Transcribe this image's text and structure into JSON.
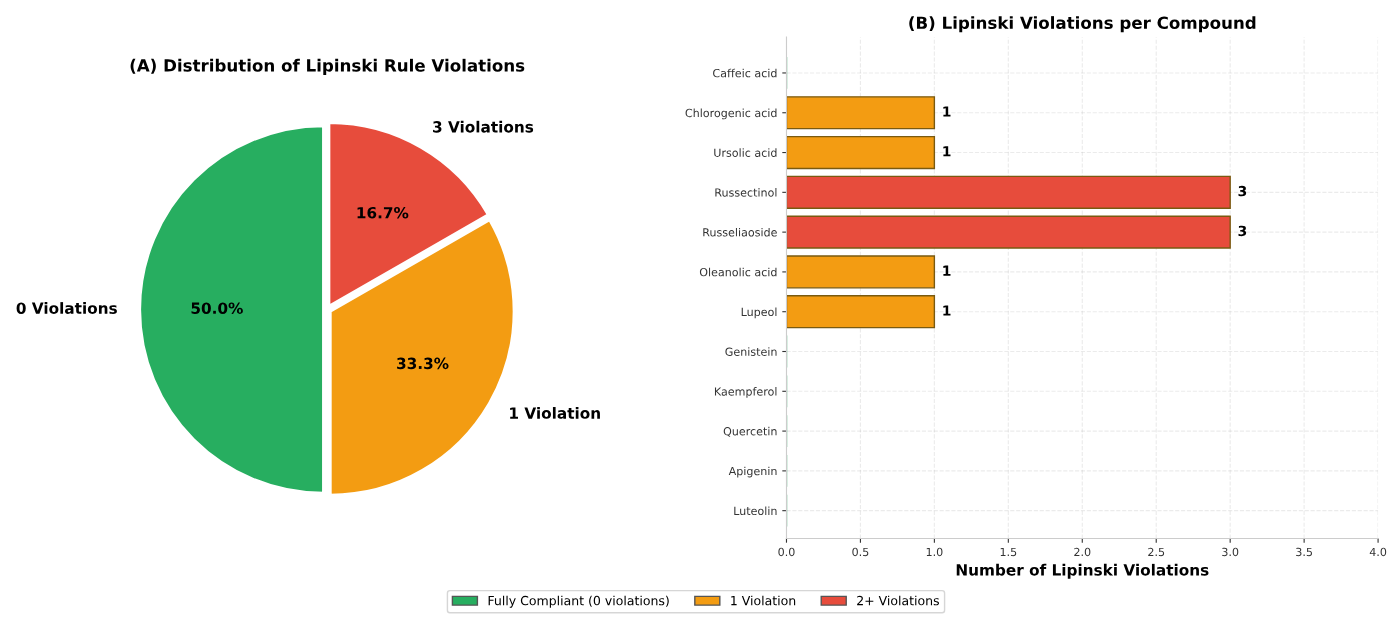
{
  "chart_data": [
    {
      "type": "pie",
      "title": "(A) Distribution of Lipinski Rule Violations",
      "categories": [
        "0 Violations",
        "1 Violation",
        "3 Violations"
      ],
      "values": [
        50.0,
        33.3,
        16.7
      ],
      "colors": [
        "#27ae60",
        "#f39c12",
        "#e74c3c"
      ],
      "value_labels": [
        "50.0%",
        "33.3%",
        "16.7%"
      ]
    },
    {
      "type": "bar",
      "orientation": "horizontal",
      "title": "(B) Lipinski Violations per Compound",
      "xlabel": "Number of Lipinski Violations",
      "categories": [
        "Caffeic acid",
        "Chlorogenic acid",
        "Ursolic acid",
        "Russectinol",
        "Russeliaoside",
        "Oleanolic acid",
        "Lupeol",
        "Genistein",
        "Kaempferol",
        "Quercetin",
        "Apigenin",
        "Luteolin"
      ],
      "series": [
        {
          "name": "Fully Compliant (0 violations)",
          "color": "#27ae60",
          "values": [
            0,
            null,
            null,
            null,
            null,
            null,
            null,
            0,
            0,
            0,
            0,
            0
          ],
          "value_labels": [
            null,
            null,
            null,
            null,
            null,
            null,
            null,
            null,
            null,
            null,
            null,
            null
          ]
        },
        {
          "name": "1 Violation",
          "color": "#f39c12",
          "values": [
            null,
            1,
            1,
            null,
            null,
            1,
            1,
            null,
            null,
            null,
            null,
            null
          ],
          "value_labels": [
            null,
            "1",
            "1",
            null,
            null,
            "1",
            "1",
            null,
            null,
            null,
            null,
            null
          ]
        },
        {
          "name": "2+ Violations",
          "color": "#e74c3c",
          "values": [
            null,
            null,
            null,
            3,
            3,
            null,
            null,
            null,
            null,
            null,
            null,
            null
          ],
          "value_labels": [
            null,
            null,
            null,
            "3",
            "3",
            null,
            null,
            null,
            null,
            null,
            null,
            null
          ]
        }
      ],
      "xlim": [
        0,
        4
      ],
      "xticks": [
        {
          "value": 0,
          "label": "0.0"
        },
        {
          "value": 0.5,
          "label": "0.5"
        },
        {
          "value": 1,
          "label": "1.0"
        },
        {
          "value": 1.5,
          "label": "1.5"
        },
        {
          "value": 2,
          "label": "2.0"
        },
        {
          "value": 2.5,
          "label": "2.5"
        },
        {
          "value": 3,
          "label": "3.0"
        },
        {
          "value": 3.5,
          "label": "3.5"
        },
        {
          "value": 4,
          "label": "4.0"
        }
      ],
      "grid": true,
      "legend": "bottom"
    }
  ]
}
